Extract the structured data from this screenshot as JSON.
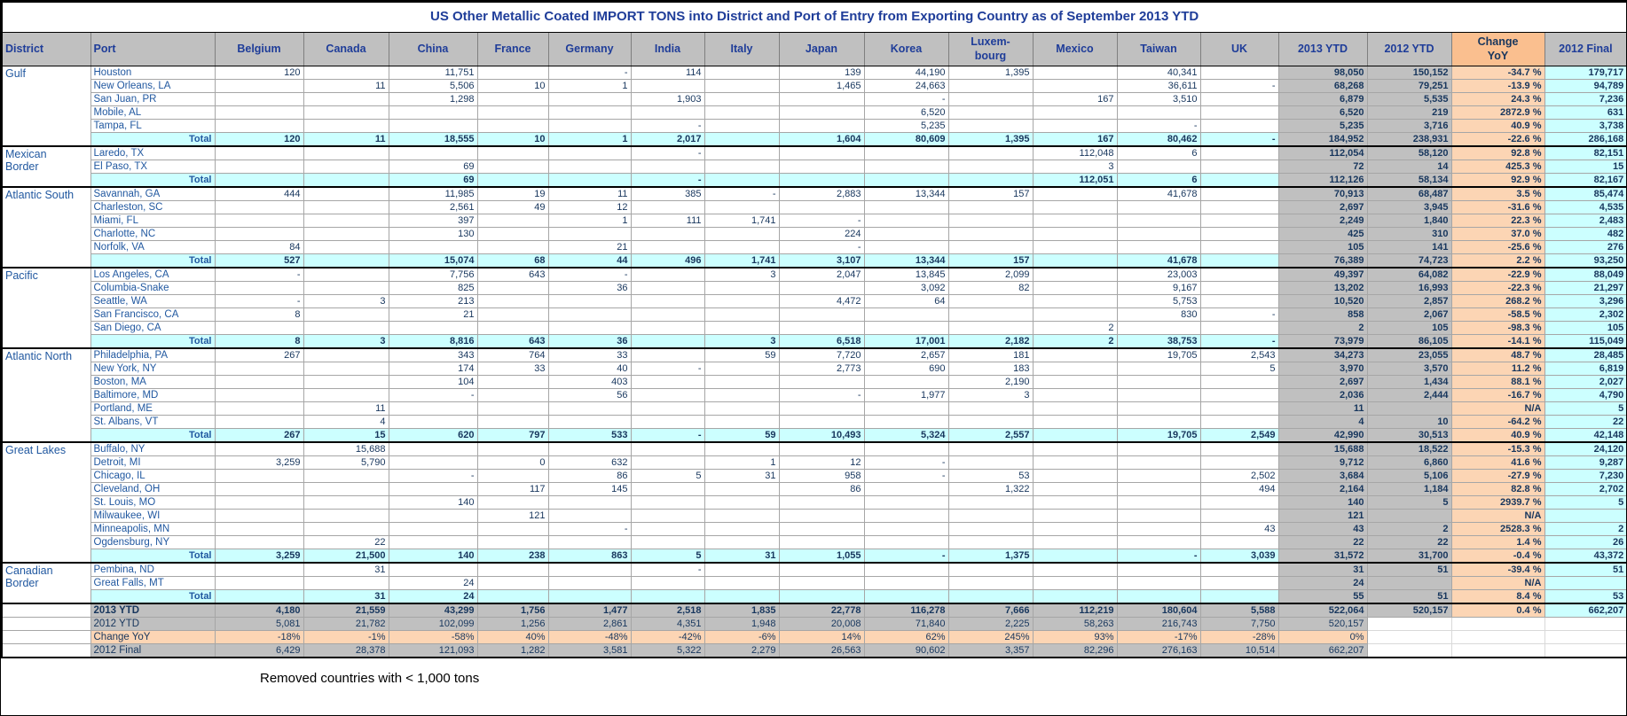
{
  "title": "US Other Metallic Coated IMPORT TONS into District and Port of Entry from Exporting Country as of September 2013 YTD",
  "footnote": "Removed countries with < 1,000 tons",
  "labels": {
    "total": "Total"
  },
  "colors": {
    "header_bg": "#C0C0C0",
    "change_header_bg": "#FABF8F",
    "change_cell_bg": "#FCD5B4",
    "total_row_bg": "#CCFFFF",
    "ytd_col_bg": "#C0C0C0",
    "final_col_bg": "#CCFFFF",
    "header_text": "#1F3D99",
    "port_text": "#2158A0",
    "number_text": "#17365D"
  },
  "columns": [
    "District",
    "Port",
    "Belgium",
    "Canada",
    "China",
    "France",
    "Germany",
    "India",
    "Italy",
    "Japan",
    "Korea",
    "Luxem-\nbourg",
    "Mexico",
    "Taiwan",
    "UK",
    "2013 YTD",
    "2012 YTD",
    "Change\nYoY",
    "2012 Final"
  ],
  "groups": [
    {
      "district": "Gulf",
      "rows": [
        {
          "port": "Houston",
          "values": [
            "120",
            "",
            "11,751",
            "",
            "-",
            "114",
            "",
            "139",
            "44,190",
            "1,395",
            "",
            "40,341",
            "",
            "98,050",
            "150,152",
            "-34.7 %",
            "179,717"
          ]
        },
        {
          "port": "New Orleans, LA",
          "values": [
            "",
            "11",
            "5,506",
            "10",
            "1",
            "",
            "",
            "1,465",
            "24,663",
            "",
            "",
            "36,611",
            "-",
            "68,268",
            "79,251",
            "-13.9 %",
            "94,789"
          ]
        },
        {
          "port": "San Juan, PR",
          "values": [
            "",
            "",
            "1,298",
            "",
            "",
            "1,903",
            "",
            "",
            "-",
            "",
            "167",
            "3,510",
            "",
            "6,879",
            "5,535",
            "24.3 %",
            "7,236"
          ]
        },
        {
          "port": "Mobile, AL",
          "values": [
            "",
            "",
            "",
            "",
            "",
            "",
            "",
            "",
            "6,520",
            "",
            "",
            "",
            "",
            "6,520",
            "219",
            "2872.9 %",
            "631"
          ]
        },
        {
          "port": "Tampa, FL",
          "values": [
            "",
            "",
            "",
            "",
            "",
            "-",
            "",
            "",
            "5,235",
            "",
            "",
            "-",
            "",
            "5,235",
            "3,716",
            "40.9 %",
            "3,738"
          ]
        }
      ],
      "total": [
        "120",
        "11",
        "18,555",
        "10",
        "1",
        "2,017",
        "",
        "1,604",
        "80,609",
        "1,395",
        "167",
        "80,462",
        "-",
        "184,952",
        "238,931",
        "-22.6 %",
        "286,168"
      ]
    },
    {
      "district": "Mexican\nBorder",
      "rows": [
        {
          "port": "Laredo, TX",
          "values": [
            "",
            "",
            "",
            "",
            "",
            "-",
            "",
            "",
            "",
            "",
            "112,048",
            "6",
            "",
            "112,054",
            "58,120",
            "92.8 %",
            "82,151"
          ]
        },
        {
          "port": "El Paso, TX",
          "values": [
            "",
            "",
            "69",
            "",
            "",
            "",
            "",
            "",
            "",
            "",
            "3",
            "",
            "",
            "72",
            "14",
            "425.3 %",
            "15"
          ]
        }
      ],
      "total": [
        "",
        "",
        "69",
        "",
        "",
        "-",
        "",
        "",
        "",
        "",
        "112,051",
        "6",
        "",
        "112,126",
        "58,134",
        "92.9 %",
        "82,167"
      ]
    },
    {
      "district": "Atlantic South",
      "rows": [
        {
          "port": "Savannah, GA",
          "values": [
            "444",
            "",
            "11,985",
            "19",
            "11",
            "385",
            "-",
            "2,883",
            "13,344",
            "157",
            "",
            "41,678",
            "",
            "70,913",
            "68,487",
            "3.5 %",
            "85,474"
          ]
        },
        {
          "port": "Charleston, SC",
          "values": [
            "",
            "",
            "2,561",
            "49",
            "12",
            "",
            "",
            "",
            "",
            "",
            "",
            "",
            "",
            "2,697",
            "3,945",
            "-31.6 %",
            "4,535"
          ]
        },
        {
          "port": "Miami, FL",
          "values": [
            "",
            "",
            "397",
            "",
            "1",
            "111",
            "1,741",
            "-",
            "",
            "",
            "",
            "",
            "",
            "2,249",
            "1,840",
            "22.3 %",
            "2,483"
          ]
        },
        {
          "port": "Charlotte, NC",
          "values": [
            "",
            "",
            "130",
            "",
            "",
            "",
            "",
            "224",
            "",
            "",
            "",
            "",
            "",
            "425",
            "310",
            "37.0 %",
            "482"
          ]
        },
        {
          "port": "Norfolk, VA",
          "values": [
            "84",
            "",
            "",
            "",
            "21",
            "",
            "",
            "-",
            "",
            "",
            "",
            "",
            "",
            "105",
            "141",
            "-25.6 %",
            "276"
          ]
        }
      ],
      "total": [
        "527",
        "",
        "15,074",
        "68",
        "44",
        "496",
        "1,741",
        "3,107",
        "13,344",
        "157",
        "",
        "41,678",
        "",
        "76,389",
        "74,723",
        "2.2 %",
        "93,250"
      ]
    },
    {
      "district": "Pacific",
      "rows": [
        {
          "port": "Los Angeles, CA",
          "values": [
            "-",
            "",
            "7,756",
            "643",
            "-",
            "",
            "3",
            "2,047",
            "13,845",
            "2,099",
            "",
            "23,003",
            "",
            "49,397",
            "64,082",
            "-22.9 %",
            "88,049"
          ]
        },
        {
          "port": "Columbia-Snake",
          "values": [
            "",
            "",
            "825",
            "",
            "36",
            "",
            "",
            "",
            "3,092",
            "82",
            "",
            "9,167",
            "",
            "13,202",
            "16,993",
            "-22.3 %",
            "21,297"
          ]
        },
        {
          "port": "Seattle, WA",
          "values": [
            "-",
            "3",
            "213",
            "",
            "",
            "",
            "",
            "4,472",
            "64",
            "",
            "",
            "5,753",
            "",
            "10,520",
            "2,857",
            "268.2 %",
            "3,296"
          ]
        },
        {
          "port": "San Francisco, CA",
          "values": [
            "8",
            "",
            "21",
            "",
            "",
            "",
            "",
            "",
            "",
            "",
            "",
            "830",
            "-",
            "858",
            "2,067",
            "-58.5 %",
            "2,302"
          ]
        },
        {
          "port": "San Diego, CA",
          "values": [
            "",
            "",
            "",
            "",
            "",
            "",
            "",
            "",
            "",
            "",
            "2",
            "",
            "",
            "2",
            "105",
            "-98.3 %",
            "105"
          ]
        }
      ],
      "total": [
        "8",
        "3",
        "8,816",
        "643",
        "36",
        "",
        "3",
        "6,518",
        "17,001",
        "2,182",
        "2",
        "38,753",
        "-",
        "73,979",
        "86,105",
        "-14.1 %",
        "115,049"
      ]
    },
    {
      "district": "Atlantic North",
      "rows": [
        {
          "port": "Philadelphia, PA",
          "values": [
            "267",
            "",
            "343",
            "764",
            "33",
            "",
            "59",
            "7,720",
            "2,657",
            "181",
            "",
            "19,705",
            "2,543",
            "34,273",
            "23,055",
            "48.7 %",
            "28,485"
          ]
        },
        {
          "port": "New York, NY",
          "values": [
            "",
            "",
            "174",
            "33",
            "40",
            "-",
            "",
            "2,773",
            "690",
            "183",
            "",
            "",
            "5",
            "3,970",
            "3,570",
            "11.2 %",
            "6,819"
          ]
        },
        {
          "port": "Boston, MA",
          "values": [
            "",
            "",
            "104",
            "",
            "403",
            "",
            "",
            "",
            "",
            "2,190",
            "",
            "",
            "",
            "2,697",
            "1,434",
            "88.1 %",
            "2,027"
          ]
        },
        {
          "port": "Baltimore, MD",
          "values": [
            "",
            "",
            "-",
            "",
            "56",
            "",
            "",
            "-",
            "1,977",
            "3",
            "",
            "",
            "",
            "2,036",
            "2,444",
            "-16.7 %",
            "4,790"
          ]
        },
        {
          "port": "Portland, ME",
          "values": [
            "",
            "11",
            "",
            "",
            "",
            "",
            "",
            "",
            "",
            "",
            "",
            "",
            "",
            "11",
            "",
            "N/A",
            "5"
          ]
        },
        {
          "port": "St. Albans, VT",
          "values": [
            "",
            "4",
            "",
            "",
            "",
            "",
            "",
            "",
            "",
            "",
            "",
            "",
            "",
            "4",
            "10",
            "-64.2 %",
            "22"
          ]
        }
      ],
      "total": [
        "267",
        "15",
        "620",
        "797",
        "533",
        "-",
        "59",
        "10,493",
        "5,324",
        "2,557",
        "",
        "19,705",
        "2,549",
        "42,990",
        "30,513",
        "40.9 %",
        "42,148"
      ]
    },
    {
      "district": "Great Lakes",
      "rows": [
        {
          "port": "Buffalo, NY",
          "values": [
            "",
            "15,688",
            "",
            "",
            "",
            "",
            "",
            "",
            "",
            "",
            "",
            "",
            "",
            "15,688",
            "18,522",
            "-15.3 %",
            "24,120"
          ]
        },
        {
          "port": "Detroit, MI",
          "values": [
            "3,259",
            "5,790",
            "",
            "0",
            "632",
            "",
            "1",
            "12",
            "-",
            "",
            "",
            "",
            "",
            "9,712",
            "6,860",
            "41.6 %",
            "9,287"
          ]
        },
        {
          "port": "Chicago, IL",
          "values": [
            "",
            "",
            "-",
            "",
            "86",
            "5",
            "31",
            "958",
            "-",
            "53",
            "",
            "",
            "2,502",
            "3,684",
            "5,106",
            "-27.9 %",
            "7,230"
          ]
        },
        {
          "port": "Cleveland, OH",
          "values": [
            "",
            "",
            "",
            "117",
            "145",
            "",
            "",
            "86",
            "",
            "1,322",
            "",
            "",
            "494",
            "2,164",
            "1,184",
            "82.8 %",
            "2,702"
          ]
        },
        {
          "port": "St. Louis, MO",
          "values": [
            "",
            "",
            "140",
            "",
            "",
            "",
            "",
            "",
            "",
            "",
            "",
            "",
            "",
            "140",
            "5",
            "2939.7 %",
            "5"
          ]
        },
        {
          "port": "Milwaukee, WI",
          "values": [
            "",
            "",
            "",
            "121",
            "",
            "",
            "",
            "",
            "",
            "",
            "",
            "",
            "",
            "121",
            "",
            "N/A",
            ""
          ]
        },
        {
          "port": "Minneapolis, MN",
          "values": [
            "",
            "",
            "",
            "",
            "-",
            "",
            "",
            "",
            "",
            "",
            "",
            "",
            "43",
            "43",
            "2",
            "2528.3 %",
            "2"
          ]
        },
        {
          "port": "Ogdensburg, NY",
          "values": [
            "",
            "22",
            "",
            "",
            "",
            "",
            "",
            "",
            "",
            "",
            "",
            "",
            "",
            "22",
            "22",
            "1.4 %",
            "26"
          ]
        }
      ],
      "total": [
        "3,259",
        "21,500",
        "140",
        "238",
        "863",
        "5",
        "31",
        "1,055",
        "-",
        "1,375",
        "",
        "-",
        "3,039",
        "31,572",
        "31,700",
        "-0.4 %",
        "43,372"
      ]
    },
    {
      "district": "Canadian\nBorder",
      "rows": [
        {
          "port": "Pembina, ND",
          "values": [
            "",
            "31",
            "",
            "",
            "",
            "-",
            "",
            "",
            "",
            "",
            "",
            "",
            "",
            "31",
            "51",
            "-39.4 %",
            "51"
          ]
        },
        {
          "port": "Great Falls, MT",
          "values": [
            "",
            "",
            "24",
            "",
            "",
            "",
            "",
            "",
            "",
            "",
            "",
            "",
            "",
            "24",
            "",
            "N/A",
            ""
          ]
        }
      ],
      "total": [
        "",
        "31",
        "24",
        "",
        "",
        "",
        "",
        "",
        "",
        "",
        "",
        "",
        "",
        "55",
        "51",
        "8.4 %",
        "53"
      ]
    }
  ],
  "summary": [
    {
      "label": "2013 YTD",
      "style": "gray",
      "bold": true,
      "values": [
        "4,180",
        "21,559",
        "43,299",
        "1,756",
        "1,477",
        "2,518",
        "1,835",
        "22,778",
        "116,278",
        "7,666",
        "112,219",
        "180,604",
        "5,588",
        "522,064",
        "520,157",
        "0.4 %",
        "662,207"
      ]
    },
    {
      "label": "2012 YTD",
      "style": "gray",
      "bold": false,
      "values": [
        "5,081",
        "21,782",
        "102,099",
        "1,256",
        "2,861",
        "4,351",
        "1,948",
        "20,008",
        "71,840",
        "2,225",
        "58,263",
        "216,743",
        "7,750",
        "520,157",
        "",
        "",
        ""
      ]
    },
    {
      "label": "Change YoY",
      "style": "peach",
      "bold": false,
      "values": [
        "-18%",
        "-1%",
        "-58%",
        "40%",
        "-48%",
        "-42%",
        "-6%",
        "14%",
        "62%",
        "245%",
        "93%",
        "-17%",
        "-28%",
        "0%",
        "",
        "",
        ""
      ]
    },
    {
      "label": "2012 Final",
      "style": "gray",
      "bold": false,
      "values": [
        "6,429",
        "28,378",
        "121,093",
        "1,282",
        "3,581",
        "5,322",
        "2,279",
        "26,563",
        "90,602",
        "3,357",
        "82,296",
        "276,163",
        "10,514",
        "662,207",
        "",
        "",
        ""
      ]
    }
  ]
}
